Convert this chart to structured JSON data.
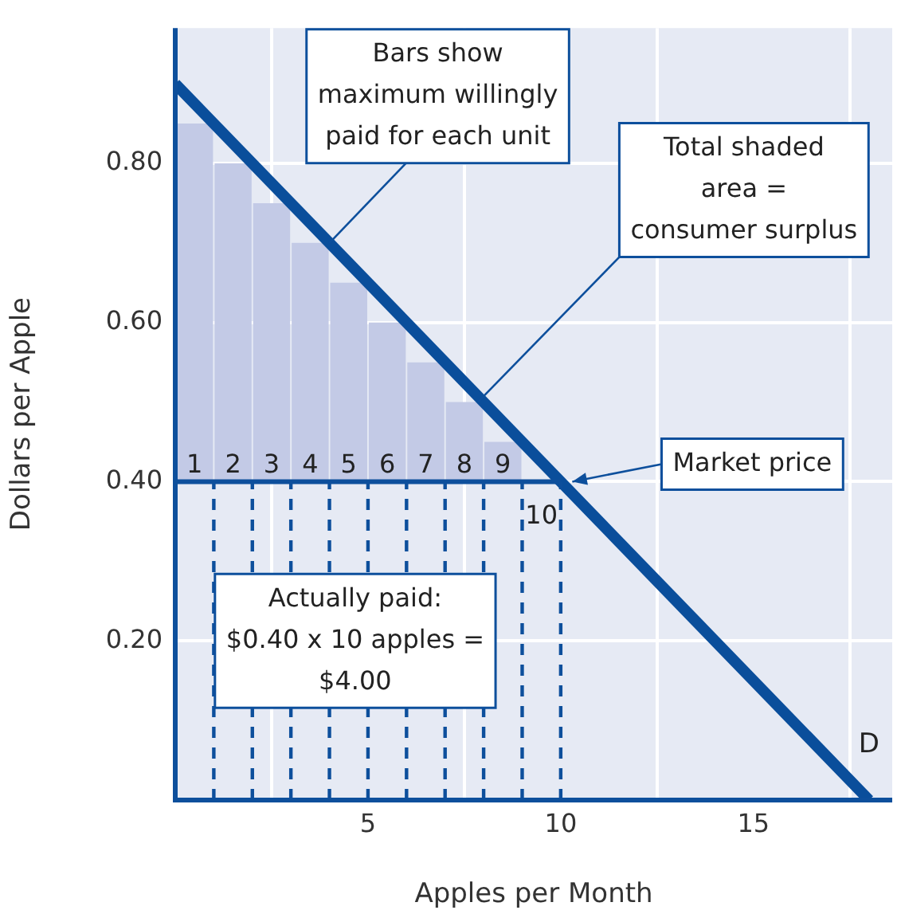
{
  "chart_data": {
    "type": "bar",
    "xlabel": "Apples per Month",
    "ylabel": "Dollars per Apple",
    "xlim": [
      0,
      18.6
    ],
    "ylim": [
      0,
      0.97
    ],
    "xticks": [
      5,
      10,
      15
    ],
    "yticks": [
      {
        "value": 0.2,
        "label": "0.20"
      },
      {
        "value": 0.4,
        "label": "0.40"
      },
      {
        "value": 0.6,
        "label": "0.60"
      },
      {
        "value": 0.8,
        "label": "0.80"
      }
    ],
    "grid": true,
    "legend": false,
    "series": [
      {
        "color": "#c3cae6",
        "x": [
          0.5,
          1.5,
          2.5,
          3.5,
          4.5,
          5.5,
          6.5,
          7.5,
          8.5
        ],
        "base": [
          0.4,
          0.4,
          0.4,
          0.4,
          0.4,
          0.4,
          0.4,
          0.4,
          0.4
        ],
        "values": [
          0.45,
          0.4,
          0.35,
          0.3,
          0.25,
          0.2,
          0.15,
          0.1,
          0.05
        ]
      },
      {
        "type": "line",
        "color": "#0d4f9c",
        "line_style": "dashed",
        "x": [
          1,
          1
        ],
        "values": [
          0,
          0.4
        ]
      },
      {
        "type": "line",
        "color": "#0d4f9c",
        "line_style": "dashed",
        "x": [
          2,
          2
        ],
        "values": [
          0,
          0.4
        ]
      },
      {
        "type": "line",
        "color": "#0d4f9c",
        "line_style": "dashed",
        "x": [
          3,
          3
        ],
        "values": [
          0,
          0.4
        ]
      },
      {
        "type": "line",
        "color": "#0d4f9c",
        "line_style": "dashed",
        "x": [
          4,
          4
        ],
        "values": [
          0,
          0.4
        ]
      },
      {
        "type": "line",
        "color": "#0d4f9c",
        "line_style": "dashed",
        "x": [
          5,
          5
        ],
        "values": [
          0,
          0.4
        ]
      },
      {
        "type": "line",
        "color": "#0d4f9c",
        "line_style": "dashed",
        "x": [
          6,
          6
        ],
        "values": [
          0,
          0.4
        ]
      },
      {
        "type": "line",
        "color": "#0d4f9c",
        "line_style": "dashed",
        "x": [
          7,
          7
        ],
        "values": [
          0,
          0.4
        ]
      },
      {
        "type": "line",
        "color": "#0d4f9c",
        "line_style": "dashed",
        "x": [
          8,
          8
        ],
        "values": [
          0,
          0.4
        ]
      },
      {
        "type": "line",
        "color": "#0d4f9c",
        "line_style": "dashed",
        "x": [
          9,
          9
        ],
        "values": [
          0,
          0.4
        ]
      },
      {
        "type": "line",
        "color": "#0d4f9c",
        "line_style": "dashed",
        "x": [
          10,
          10
        ],
        "values": [
          0,
          0.4
        ]
      },
      {
        "type": "line",
        "color": "#0d4f9c",
        "x": [
          0,
          10
        ],
        "values": [
          0.4,
          0.4
        ]
      },
      {
        "type": "line",
        "name": "D",
        "color": "#0a4e9b",
        "x": [
          0,
          18
        ],
        "values": [
          0.9,
          0
        ]
      }
    ],
    "annotations": [
      {
        "text": "Bars show\nmaximum willingly\npaid for each unit",
        "x": 4,
        "y": 0.7
      },
      {
        "text": "Total shaded\narea =\nconsumer surplus",
        "x": 7.85,
        "y": 0.5
      },
      {
        "text": "Market price",
        "x": 10.3,
        "y": 0.4
      },
      "Actually paid:\n$0.40 x 10 apples =\n$4.00",
      {
        "text": "1",
        "x": 0.5,
        "y": 0.4
      },
      {
        "text": "2",
        "x": 1.5,
        "y": 0.4
      },
      {
        "text": "3",
        "x": 2.5,
        "y": 0.4
      },
      {
        "text": "4",
        "x": 3.5,
        "y": 0.4
      },
      {
        "text": "5",
        "x": 4.5,
        "y": 0.4
      },
      {
        "text": "6",
        "x": 5.5,
        "y": 0.4
      },
      {
        "text": "7",
        "x": 6.5,
        "y": 0.4
      },
      {
        "text": "8",
        "x": 7.5,
        "y": 0.4
      },
      {
        "text": "9",
        "x": 8.5,
        "y": 0.4
      },
      {
        "text": "10",
        "x": 9.5,
        "y": 0.4
      }
    ]
  }
}
